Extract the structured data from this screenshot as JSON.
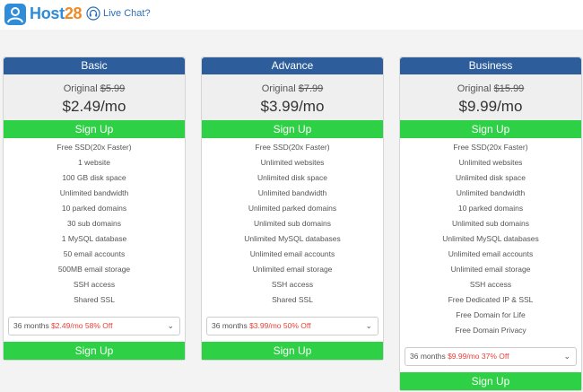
{
  "header": {
    "logo_text": "Host",
    "logo_number": "28",
    "live_chat": "Live Chat?"
  },
  "plans": [
    {
      "name": "Basic",
      "original_label": "Original",
      "original_price": "$5.99",
      "price": "$2.49/mo",
      "signup_label": "Sign Up",
      "features": [
        "Free SSD(20x Faster)",
        "1 website",
        "100 GB disk space",
        "Unlimited bandwidth",
        "10 parked domains",
        "30 sub domains",
        "1 MySQL database",
        "50 email accounts",
        "500MB email storage",
        "SSH access",
        "Shared SSL"
      ],
      "term": {
        "months": "36 months",
        "deal": "$2.49/mo 58% Off"
      },
      "bottom_signup_label": "Sign Up"
    },
    {
      "name": "Advance",
      "original_label": "Original",
      "original_price": "$7.99",
      "price": "$3.99/mo",
      "signup_label": "Sign Up",
      "features": [
        "Free SSD(20x Faster)",
        "Unlimited websites",
        "Unlimited disk space",
        "Unlimited bandwidth",
        "Unlimited parked domains",
        "Unlimited sub domains",
        "Unlimited MySQL databases",
        "Unlimited email accounts",
        "Unlimited email storage",
        "SSH access",
        "Shared SSL"
      ],
      "term": {
        "months": "36 months",
        "deal": "$3.99/mo 50% Off"
      },
      "bottom_signup_label": "Sign Up"
    },
    {
      "name": "Business",
      "original_label": "Original",
      "original_price": "$15.99",
      "price": "$9.99/mo",
      "signup_label": "Sign Up",
      "features": [
        "Free SSD(20x Faster)",
        "Unlimited websites",
        "Unlimited disk space",
        "Unlimited bandwidth",
        "10 parked domains",
        "Unlimited sub domains",
        "Unlimited MySQL databases",
        "Unlimited email accounts",
        "Unlimited email storage",
        "SSH access",
        "Free Dedicated IP & SSL",
        "Free Domain for Life",
        "Free Domain Privacy"
      ],
      "term": {
        "months": "36 months",
        "deal": "$9.99/mo 37% Off"
      },
      "bottom_signup_label": "Sign Up"
    }
  ]
}
